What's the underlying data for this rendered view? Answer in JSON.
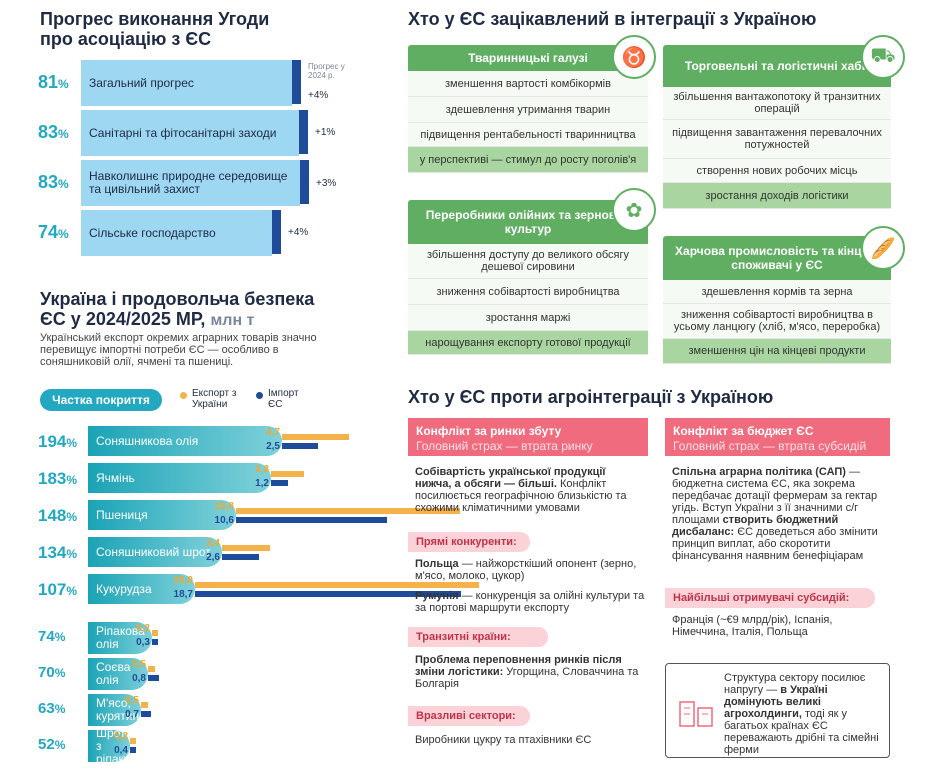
{
  "progress": {
    "title1": "Прогрес виконання Угоди",
    "title2": "про асоціацію з ЄС",
    "note": "Прогрес у 2024 р.",
    "items": [
      {
        "pct": "81",
        "label": "Загальний прогрес",
        "delta": "+4%"
      },
      {
        "pct": "83",
        "label": "Санітарні та фітосанітарні заходи",
        "delta": "+1%"
      },
      {
        "pct": "83",
        "label": "Навколишнє природне середовище та цивільний захист",
        "delta": "+3%"
      },
      {
        "pct": "74",
        "label": "Сільське господарство",
        "delta": "+4%"
      }
    ]
  },
  "food": {
    "title1": "Україна і продовольча безпека",
    "title2": "ЄС у 2024/2025 МР,",
    "unit": "млн т",
    "desc": "Український експорт окремих аграрних товарів значно перевищує імпортні потреби ЄС — особливо в соняшниковій олії, ячмені та пшениці.",
    "coverage": "Частка покриття",
    "legend_export": "Експорт з України",
    "legend_import": "Імпорт ЄС"
  },
  "chart_data": {
    "type": "bar",
    "categories": [
      "Соняшникова олія",
      "Ячмінь",
      "Пшениця",
      "Соняшниковий шрот",
      "Кукурудза",
      "Ріпакова олія",
      "Соєва олія",
      "М'ясо, курятина",
      "Шрот з ріпаку"
    ],
    "coverage": [
      "194",
      "183",
      "148",
      "134",
      "107",
      "74",
      "70",
      "63",
      "52"
    ],
    "series": [
      {
        "name": "Експорт з України",
        "values": [
          4.7,
          2.3,
          15.8,
          3.4,
          20.0,
          0.2,
          0.5,
          0.5,
          0.2
        ],
        "labels": [
          "4,7",
          "2,3",
          "15,8",
          "3,4",
          "20,0",
          "0,2",
          "0,5",
          "0,5",
          "0,2"
        ],
        "color": "#f5b14a"
      },
      {
        "name": "Імпорт ЄС",
        "values": [
          2.5,
          1.2,
          10.6,
          2.6,
          18.7,
          0.3,
          0.8,
          0.7,
          0.4
        ],
        "labels": [
          "2,5",
          "1,2",
          "10,6",
          "2,6",
          "18,7",
          "0,3",
          "0,8",
          "0,7",
          "0,4"
        ],
        "color": "#1e4c9a"
      }
    ]
  },
  "interest": {
    "title": "Хто у ЄС зацікавлений в інтеграції з Україною",
    "c1": {
      "title": "Тваринницькі галузі",
      "items": [
        "зменшення вартості комбікормів",
        "здешевлення утримання тварин",
        "підвищення рентабельності тваринництва",
        "у перспективі — стимул до росту поголів'я"
      ]
    },
    "c2": {
      "title": "Торговельні та логістичні хаби",
      "items": [
        "збільшення вантажопотоку й транзитних операцій",
        "підвищення завантаження перевалочних потужностей",
        "створення нових робочих місць",
        "зростання доходів логістики"
      ]
    },
    "c3": {
      "title": "Переробники олійних та зернових культур",
      "items": [
        "збільшення доступу до великого обсягу дешевої сировини",
        "зниження собівартості виробництва",
        "зростання маржі",
        "нарощування експорту готової продукції"
      ]
    },
    "c4": {
      "title": "Харчова промисловість та кінцеві споживачі у ЄС",
      "items": [
        "здешевлення кормів та зерна",
        "зниження собівартості виробництва в усьому ланцюгу (хліб, м'ясо, переробка)",
        "зменшення цін на кінцеві продукти"
      ]
    }
  },
  "against": {
    "title": "Хто у ЄС проти агроінтеграції з Україною",
    "left": {
      "h": "Конфлікт за ринки збуту",
      "sub": "Головний страх — втрата ринку",
      "p1b": "Собівартість української продукції нижча, а обсяги — більші.",
      "p1": " Конфлікт посилюється географічною близькістю та схожими кліматичними умовами",
      "pill1": "Прямі конкуренти:",
      "pl_b": "Польща",
      "pl": " — найжорсткіший опонент (зерно, м'ясо, молоко, цукор)",
      "ro_b": "Румунія",
      "ro": " — конкуренція за олійні культури та за портові маршрути експорту",
      "pill2": "Транзитні країни:",
      "tr_b": "Проблема переповнення ринків після зміни логістики:",
      "tr": " Угорщина, Словаччина та Болгарія",
      "pill3": "Вразливі сектори:",
      "vs": "Виробники цукру та птахівники ЄС"
    },
    "right": {
      "h": "Конфлікт за бюджет ЄС",
      "sub": "Головний страх — втрата субсидій",
      "p1b": "Спільна аграрна політика (САП)",
      "p1": " — бюджетна система ЄС, яка зокрема передбачає дотації фермерам за гектар угідь. Вступ України з її значними с/г площами ",
      "p1b2": "створить бюджетний дисбаланс:",
      "p1e": " ЄС доведеться або змінити принцип виплат, або скоротити фінансування наявним бенефіціарам",
      "pill": "Найбільші отримувачі субсидій:",
      "recv": "Франція (~€9 млрд/рік), Іспанія, Німеччина, Італія, Польща",
      "box1": "Структура сектору посилює напругу — ",
      "box_b": "в Україні домінують великі агрохолдинги,",
      "box2": " тоді як у багатьох країнах ЄС переважають дрібні та сімейні ферми"
    }
  }
}
